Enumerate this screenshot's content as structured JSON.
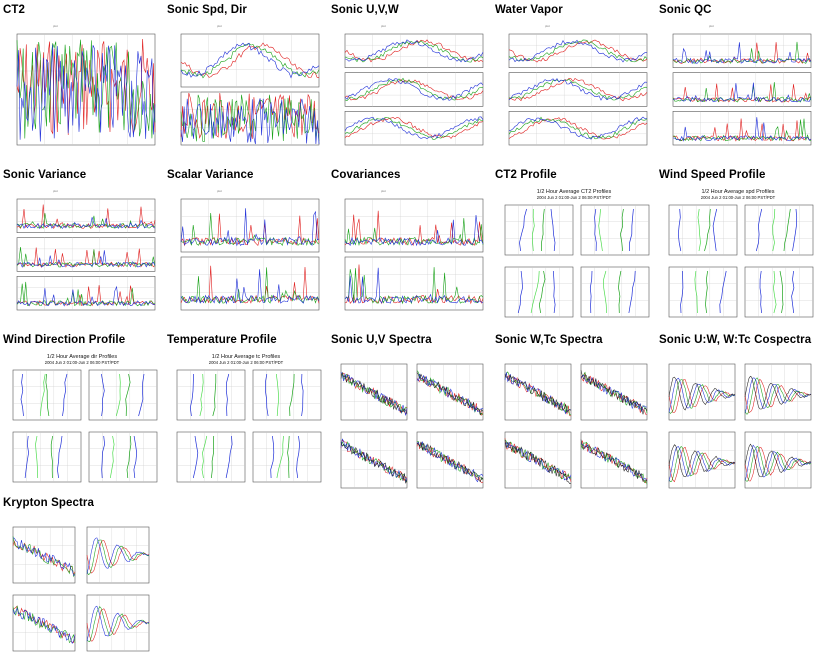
{
  "gallery": {
    "items": [
      {
        "id": "ct2",
        "title": "CT2",
        "type": "stack",
        "panels": 1
      },
      {
        "id": "sonic-spd-dir",
        "title": "Sonic Spd, Dir",
        "type": "stack",
        "panels": 2
      },
      {
        "id": "sonic-uvw",
        "title": "Sonic U,V,W",
        "type": "stack",
        "panels": 3
      },
      {
        "id": "water-vapor",
        "title": "Water Vapor",
        "type": "stack",
        "panels": 3
      },
      {
        "id": "sonic-qc",
        "title": "Sonic QC",
        "type": "stack",
        "panels": 3
      },
      {
        "id": "sonic-variance",
        "title": "Sonic Variance",
        "type": "stack",
        "panels": 3
      },
      {
        "id": "scalar-variance",
        "title": "Scalar Variance",
        "type": "stack",
        "panels": 2
      },
      {
        "id": "covariances",
        "title": "Covariances",
        "type": "stack",
        "panels": 2
      },
      {
        "id": "ct2-profile",
        "title": "CT2 Profile",
        "type": "profile",
        "caption": "1/2 Hour Average CT2 Profiles",
        "subcaption": "2004 Jun 2 01:00-Jun 2 06:00 PST/PDT"
      },
      {
        "id": "wind-speed-profile",
        "title": "Wind Speed Profile",
        "type": "profile",
        "caption": "1/2 Hour Average spd Profiles",
        "subcaption": "2004 Jun 2 01:00-Jun 2 06:00 PST/PDT"
      },
      {
        "id": "wind-direction-profile",
        "title": "Wind Direction Profile",
        "type": "profile",
        "caption": "1/2 Hour Average dir Profiles",
        "subcaption": "2004 Jun 2 01:00-Jun 2 06:00 PST/PDT"
      },
      {
        "id": "temperature-profile",
        "title": "Temperature Profile",
        "type": "profile",
        "caption": "1/2 Hour Average tc Profiles",
        "subcaption": "2004 Jun 2 01:00-Jun 2 06:00 PST/PDT"
      },
      {
        "id": "sonic-uv-spectra",
        "title": "Sonic U,V Spectra",
        "type": "spectra"
      },
      {
        "id": "sonic-wtc-spectra",
        "title": "Sonic W,Tc Spectra",
        "type": "spectra"
      },
      {
        "id": "sonic-uw-wtc-cospectra",
        "title": "Sonic U:W, W:Tc Cospectra",
        "type": "cospectra"
      },
      {
        "id": "krypton-spectra",
        "title": "Krypton Spectra",
        "type": "krypton"
      }
    ]
  },
  "colors": {
    "blue": "#1f2fd8",
    "red": "#e02020",
    "green": "#1aa21a",
    "lime": "#4fdc4f",
    "orange": "#e0a000",
    "grid": "#c8c8c8",
    "axis": "#555555"
  }
}
